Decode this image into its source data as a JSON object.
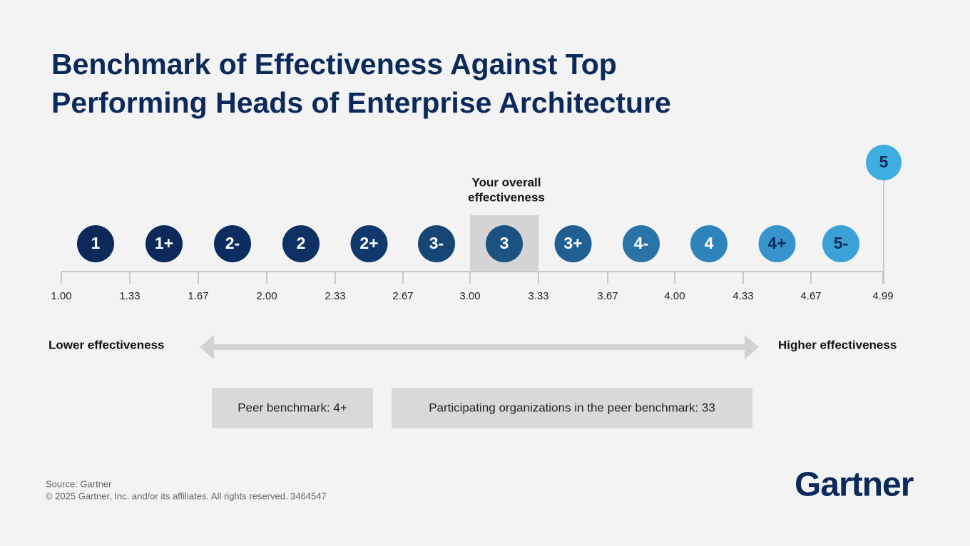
{
  "header": {
    "title_lines": [
      "Benchmark of Effectiveness Against Top",
      "Performing Heads of Enterprise Architecture"
    ]
  },
  "levels": [
    {
      "label": "1",
      "color": "#0b2a5b",
      "text_color": "#ffffff"
    },
    {
      "label": "1+",
      "color": "#0b2a5b",
      "text_color": "#ffffff"
    },
    {
      "label": "2-",
      "color": "#0c2d5f",
      "text_color": "#ffffff"
    },
    {
      "label": "2",
      "color": "#0e3163",
      "text_color": "#ffffff"
    },
    {
      "label": "2+",
      "color": "#10386b",
      "text_color": "#ffffff"
    },
    {
      "label": "3-",
      "color": "#154675",
      "text_color": "#ffffff"
    },
    {
      "label": "3",
      "color": "#1a5282",
      "text_color": "#ffffff"
    },
    {
      "label": "3+",
      "color": "#205f92",
      "text_color": "#ffffff"
    },
    {
      "label": "4-",
      "color": "#2a73a6",
      "text_color": "#ffffff"
    },
    {
      "label": "4",
      "color": "#2f83bb",
      "text_color": "#ffffff"
    },
    {
      "label": "4+",
      "color": "#3694cb",
      "text_color": "#0b2a5b"
    },
    {
      "label": "5-",
      "color": "#3ca2d6",
      "text_color": "#0b2a5b"
    }
  ],
  "top_level": {
    "label": "5",
    "color": "#3eaee0",
    "text_color": "#0b2a5b"
  },
  "highlight": {
    "label_lines": [
      "Your overall",
      "effectiveness"
    ],
    "level_index": 6
  },
  "ticks": [
    "1.00",
    "1.33",
    "1.67",
    "2.00",
    "2.33",
    "2.67",
    "3.00",
    "3.33",
    "3.67",
    "4.00",
    "4.33",
    "4.67",
    "4.99"
  ],
  "scale": {
    "left": "Lower effectiveness",
    "right": "Higher effectiveness"
  },
  "boxes": [
    "Peer benchmark: 4+",
    "Participating organizations in the peer benchmark: 33"
  ],
  "footer": {
    "source": "Source: Gartner",
    "copyright": "© 2025 Gartner, Inc. and/or its affiliates. All rights reserved. 3464547",
    "logo": "Gartner"
  }
}
